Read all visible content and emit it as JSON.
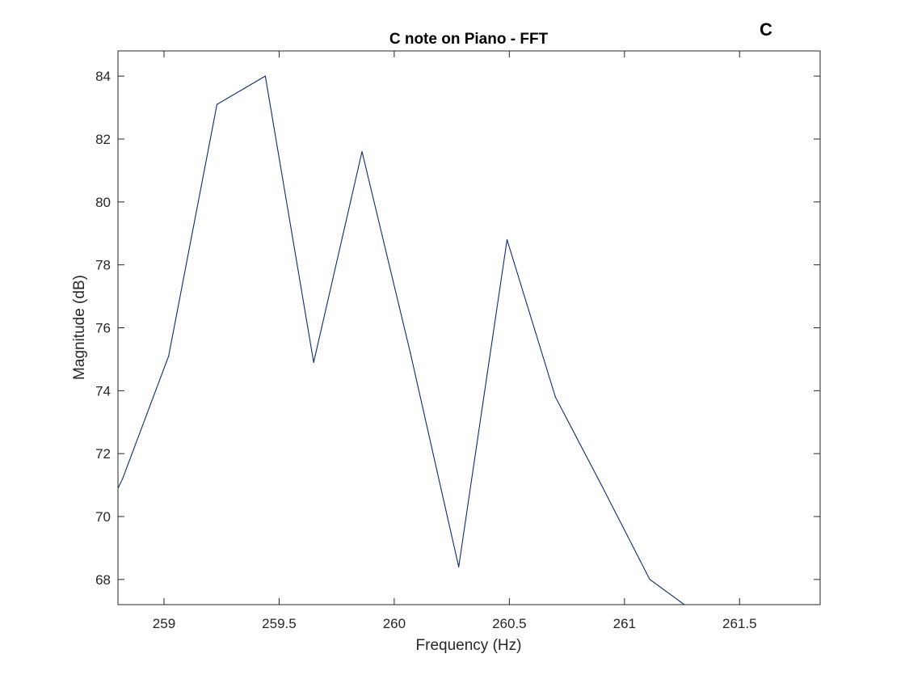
{
  "chart_data": {
    "type": "line",
    "title": "C note on Piano - FFT",
    "xlabel": "Frequency (Hz)",
    "ylabel": "Magnitude (dB)",
    "annotation": "C",
    "xlim": [
      258.8,
      261.85
    ],
    "ylim": [
      67.2,
      84.8
    ],
    "x_ticks": [
      259,
      259.5,
      260,
      260.5,
      261,
      261.5
    ],
    "x_tick_labels": [
      "259",
      "259.5",
      "260",
      "260.5",
      "261",
      "261.5"
    ],
    "y_ticks": [
      68,
      70,
      72,
      74,
      76,
      78,
      80,
      82,
      84
    ],
    "y_tick_labels": [
      "68",
      "70",
      "72",
      "74",
      "76",
      "78",
      "80",
      "82",
      "84"
    ],
    "grid": false,
    "box": true,
    "series": [
      {
        "color": "#0b2c6e",
        "x": [
          258.8,
          258.82,
          259.02,
          259.23,
          259.44,
          259.65,
          259.86,
          260.07,
          260.28,
          260.49,
          260.7,
          260.9,
          261.11,
          261.26
        ],
        "y": [
          70.9,
          71.2,
          75.1,
          83.1,
          84.0,
          74.9,
          81.6,
          75.2,
          68.4,
          78.8,
          73.8,
          71.0,
          68.0,
          67.2
        ]
      }
    ]
  }
}
